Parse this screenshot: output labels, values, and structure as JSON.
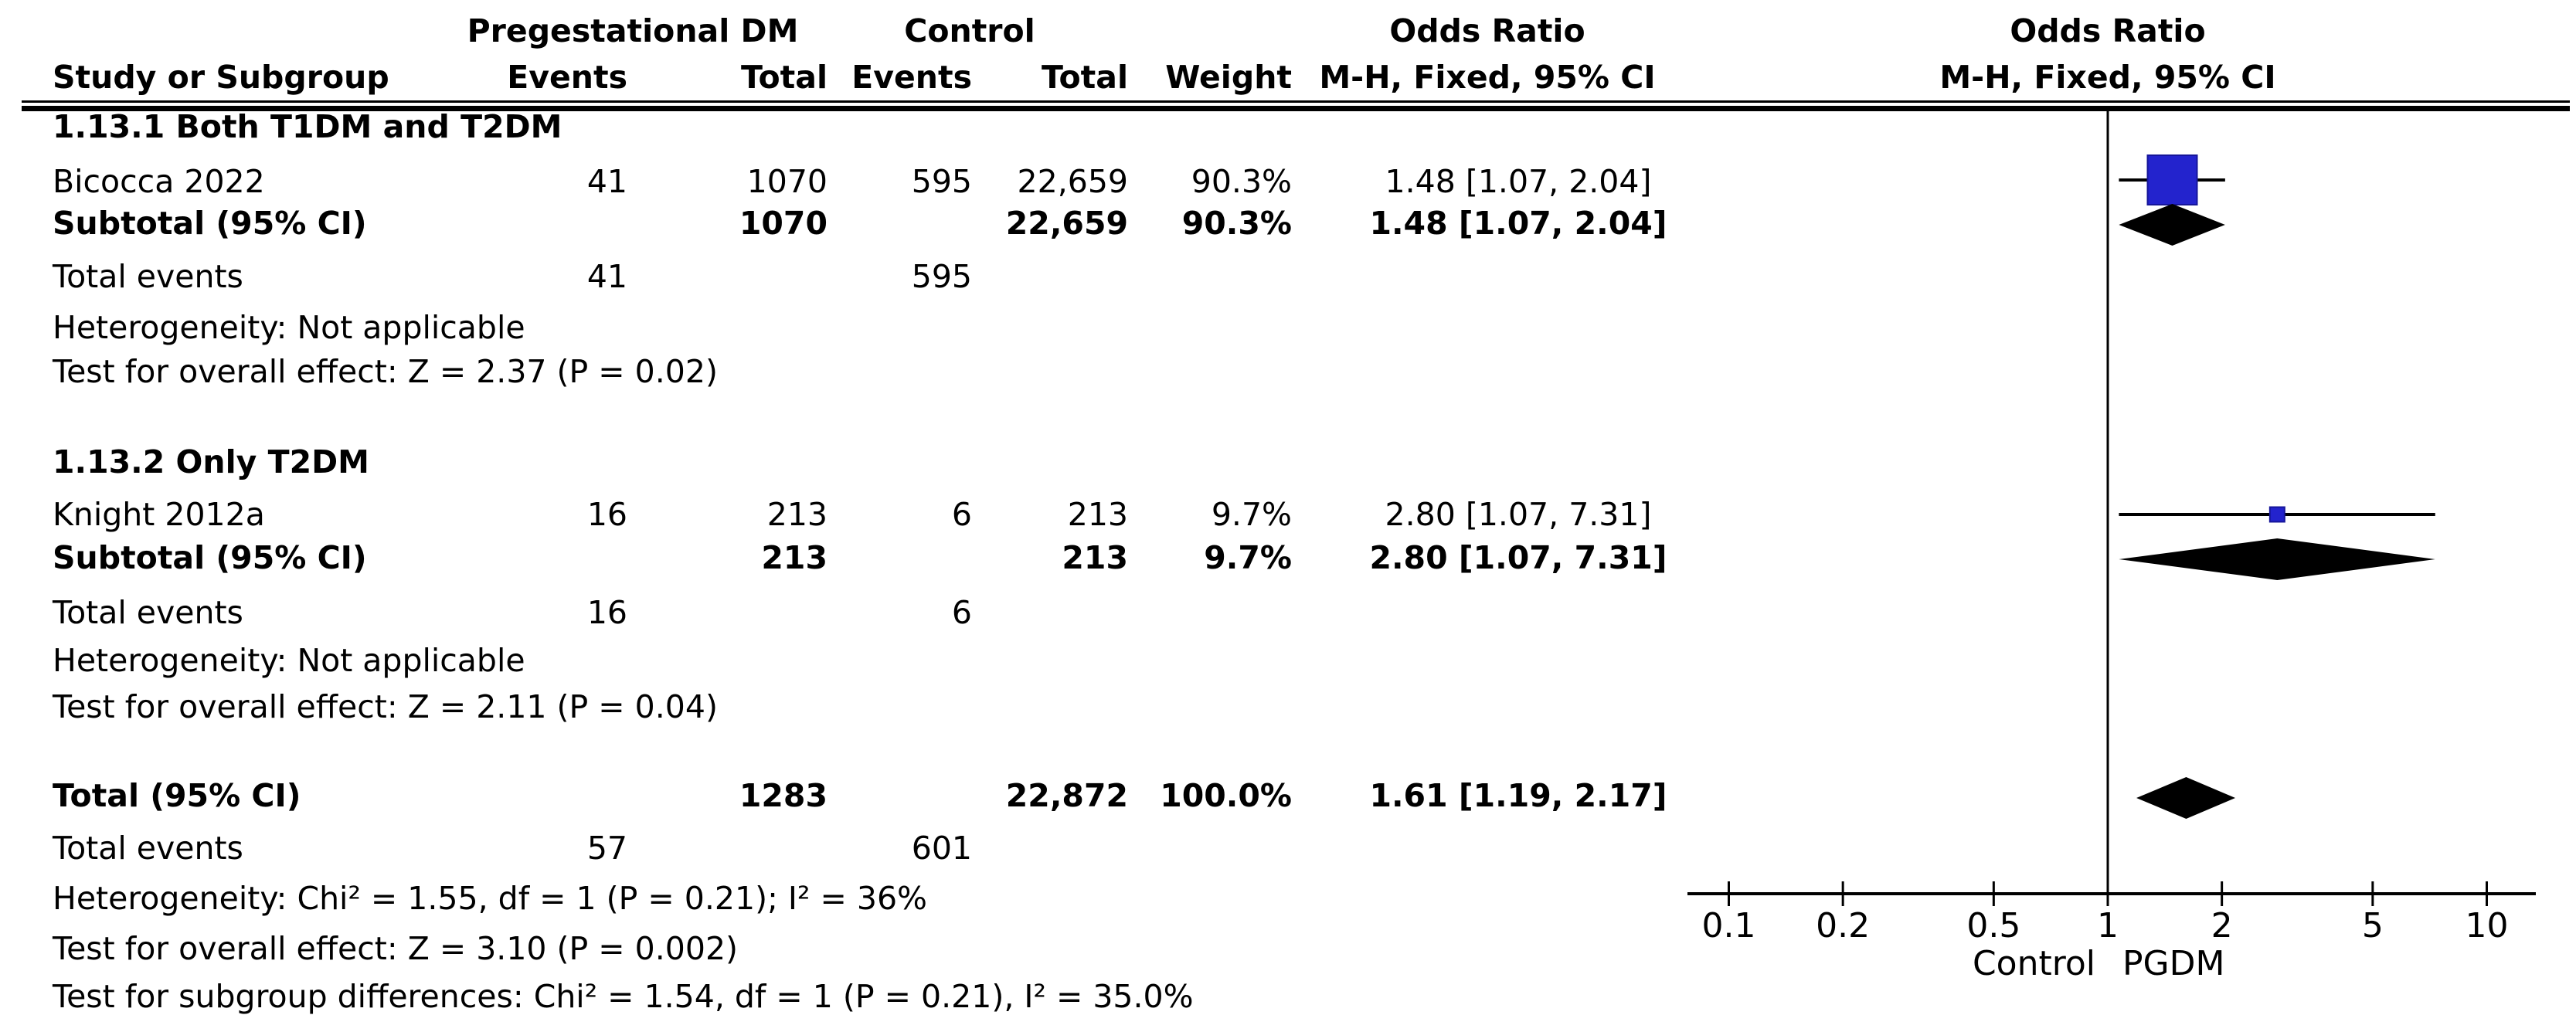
{
  "header": {
    "group_exp": "Pregestational DM",
    "group_ctrl": "Control",
    "group_or": "Odds Ratio",
    "group_or_plot": "Odds Ratio",
    "study": "Study or Subgroup",
    "events": "Events",
    "total": "Total",
    "events_ctrl": "Events",
    "total_ctrl": "Total",
    "weight": "Weight",
    "mh": "M-H, Fixed, 95% CI",
    "mh_plot": "M-H, Fixed, 95% CI"
  },
  "sections": [
    {
      "heading": "1.13.1 Both T1DM and T2DM",
      "study": {
        "name": "Bicocca 2022",
        "events_dm": "41",
        "total_dm": "1070",
        "events_ctrl": "595",
        "total_ctrl": "22,659",
        "weight": "90.3%",
        "or_ci": "1.48 [1.07, 2.04]"
      },
      "subtotal": {
        "label": "Subtotal (95% CI)",
        "total_dm": "1070",
        "total_ctrl": "22,659",
        "weight": "90.3%",
        "or_ci": "1.48 [1.07, 2.04]"
      },
      "total_events": {
        "label": "Total events",
        "events_dm": "41",
        "events_ctrl": "595"
      },
      "heterogeneity": "Heterogeneity: Not applicable",
      "overall_effect": "Test for overall effect: Z = 2.37 (P = 0.02)"
    },
    {
      "heading": "1.13.2 Only T2DM",
      "study": {
        "name": "Knight 2012a",
        "events_dm": "16",
        "total_dm": "213",
        "events_ctrl": "6",
        "total_ctrl": "213",
        "weight": "9.7%",
        "or_ci": "2.80 [1.07, 7.31]"
      },
      "subtotal": {
        "label": "Subtotal (95% CI)",
        "total_dm": "213",
        "total_ctrl": "213",
        "weight": "9.7%",
        "or_ci": "2.80 [1.07, 7.31]"
      },
      "total_events": {
        "label": "Total events",
        "events_dm": "16",
        "events_ctrl": "6"
      },
      "heterogeneity": "Heterogeneity: Not applicable",
      "overall_effect": "Test for overall effect: Z = 2.11 (P = 0.04)"
    }
  ],
  "totals": {
    "total": {
      "label": "Total (95% CI)",
      "total_dm": "1283",
      "total_ctrl": "22,872",
      "weight": "100.0%",
      "or_ci": "1.61 [1.19, 2.17]"
    },
    "total_events": {
      "label": "Total events",
      "events_dm": "57",
      "events_ctrl": "601"
    },
    "heterogeneity": "Heterogeneity: Chi² = 1.55, df = 1 (P = 0.21); I² = 36%",
    "overall_effect": "Test for overall effect: Z = 3.10 (P = 0.002)",
    "subgroup_diff": "Test for subgroup differences: Chi² = 1.54, df = 1 (P = 0.21), I² = 35.0%"
  },
  "chart_data": {
    "type": "forest",
    "title": "Odds Ratio",
    "effect_measure": "M-H, Fixed, 95% CI",
    "x_axis": {
      "scale": "log10",
      "ticks": [
        0.1,
        0.2,
        0.5,
        1,
        2,
        5,
        10
      ],
      "tick_labels": [
        "0.1",
        "0.2",
        "0.5",
        "1",
        "2",
        "5",
        "10"
      ],
      "null_value": 1,
      "favours_left": "Control",
      "favours_right": "PGDM"
    },
    "points": [
      {
        "id": "bicocca",
        "label": "Bicocca 2022",
        "group": "1.13.1 Both T1DM and T2DM",
        "or": 1.48,
        "ci_low": 1.07,
        "ci_high": 2.04,
        "weight_pct": 90.3,
        "marker": "square"
      },
      {
        "id": "subtotal1",
        "label": "Subtotal (95% CI)",
        "group": "1.13.1 Both T1DM and T2DM",
        "or": 1.48,
        "ci_low": 1.07,
        "ci_high": 2.04,
        "marker": "diamond"
      },
      {
        "id": "knight",
        "label": "Knight 2012a",
        "group": "1.13.2 Only T2DM",
        "or": 2.8,
        "ci_low": 1.07,
        "ci_high": 7.31,
        "weight_pct": 9.7,
        "marker": "square"
      },
      {
        "id": "subtotal2",
        "label": "Subtotal (95% CI)",
        "group": "1.13.2 Only T2DM",
        "or": 2.8,
        "ci_low": 1.07,
        "ci_high": 7.31,
        "marker": "diamond"
      },
      {
        "id": "total",
        "label": "Total (95% CI)",
        "or": 1.61,
        "ci_low": 1.19,
        "ci_high": 2.17,
        "marker": "diamond"
      }
    ],
    "colors": {
      "square": "#2323cd",
      "diamond": "#000000",
      "line": "#000000"
    }
  }
}
